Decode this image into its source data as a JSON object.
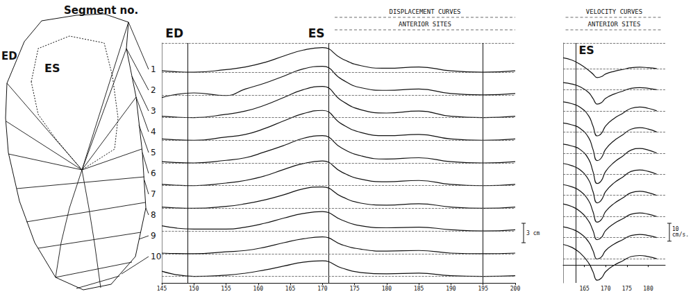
{
  "diagram": {
    "title": "Segment no.",
    "labels": [
      "ED",
      "ES"
    ],
    "segments": [
      "1",
      "2",
      "3",
      "4",
      "5",
      "6",
      "7",
      "8",
      "9",
      "10"
    ]
  },
  "chart_data": [
    {
      "type": "line",
      "title": "DISPLACEMENT CURVES",
      "subtitle": "ANTERIOR SITES",
      "color": "#111111",
      "grid": false,
      "tick_labels": "x",
      "x": [
        145,
        150,
        155,
        158,
        161,
        164,
        167,
        170,
        173,
        176,
        180,
        185,
        190,
        195,
        200
      ],
      "xlim": [
        145,
        200
      ],
      "xticks": [
        145,
        150,
        155,
        160,
        165,
        170,
        175,
        180,
        185,
        190,
        195,
        200
      ],
      "ylim": [
        0,
        37
      ],
      "yticks": [],
      "vlines": [
        149,
        171,
        195
      ],
      "annotations": [
        {
          "text": "ED",
          "x": 149
        },
        {
          "text": "ES",
          "x": 171
        }
      ],
      "scale_bar": {
        "value": 3,
        "label": "3 cm"
      },
      "series": [
        {
          "baseline": 32.5,
          "values": [
            32.7,
            32.5,
            32.9,
            33.3,
            34.0,
            35.0,
            35.9,
            36.3,
            34.6,
            33.5,
            33.1,
            33.3,
            32.7,
            32.5,
            32.7
          ]
        },
        {
          "baseline": 29,
          "values": [
            28.6,
            29.3,
            28.9,
            29.9,
            30.8,
            31.9,
            33.0,
            33.4,
            31.4,
            30.1,
            29.7,
            29.9,
            29.2,
            29.0,
            29.2
          ]
        },
        {
          "baseline": 25.5,
          "values": [
            25.7,
            25.5,
            26.0,
            26.5,
            27.4,
            28.6,
            29.8,
            30.3,
            28.1,
            26.7,
            26.2,
            26.5,
            25.7,
            25.5,
            25.7
          ]
        },
        {
          "baseline": 22,
          "values": [
            22.2,
            22.0,
            22.5,
            22.9,
            23.8,
            25.0,
            26.1,
            26.6,
            24.5,
            23.2,
            22.7,
            22.9,
            22.2,
            22.0,
            22.2
          ]
        },
        {
          "baseline": 18.5,
          "values": [
            18.7,
            18.5,
            18.9,
            19.3,
            20.2,
            21.2,
            22.3,
            22.7,
            20.8,
            19.6,
            19.1,
            19.3,
            18.7,
            18.5,
            18.7
          ]
        },
        {
          "baseline": 15,
          "values": [
            15.2,
            15.0,
            15.4,
            15.8,
            16.5,
            17.5,
            18.4,
            18.8,
            17.1,
            16.0,
            15.6,
            15.8,
            15.2,
            15.0,
            15.2
          ]
        },
        {
          "baseline": 11.5,
          "values": [
            11.7,
            11.5,
            11.8,
            12.2,
            12.8,
            13.6,
            14.5,
            14.8,
            13.3,
            12.3,
            12.0,
            12.2,
            11.7,
            11.5,
            11.7
          ]
        },
        {
          "baseline": 8,
          "values": [
            8.8,
            8.3,
            8.3,
            8.6,
            9.2,
            10.0,
            10.7,
            11.0,
            9.7,
            8.8,
            8.5,
            8.6,
            8.2,
            8.0,
            8.2
          ]
        },
        {
          "baseline": 4.5,
          "values": [
            4.6,
            4.5,
            4.8,
            5.0,
            5.5,
            6.2,
            6.8,
            7.1,
            5.9,
            5.2,
            4.9,
            5.0,
            4.6,
            4.5,
            4.6
          ]
        },
        {
          "baseline": 1,
          "values": [
            1.8,
            1.0,
            1.2,
            1.5,
            2.0,
            2.6,
            3.2,
            3.4,
            2.3,
            1.6,
            1.4,
            1.5,
            1.1,
            1.0,
            1.1
          ]
        }
      ]
    },
    {
      "type": "line",
      "title": "VELOCITY CURVES",
      "subtitle": "ANTERIOR SITES",
      "color": "#111111",
      "grid": false,
      "tick_labels": "x",
      "x": [
        160,
        162,
        164,
        166,
        167,
        168,
        169,
        170,
        172,
        174,
        176,
        178,
        180,
        182
      ],
      "xlim": [
        160,
        184
      ],
      "xticks": [
        165,
        170,
        175,
        180
      ],
      "ylim": [
        -10,
        124
      ],
      "yticks": [],
      "vlines": [
        163
      ],
      "annotations": [
        {
          "text": "ES",
          "x": 163
        }
      ],
      "scale_bar": {
        "value": 10,
        "label": "10 cm/s."
      },
      "series": [
        {
          "baseline": 109.7,
          "values": [
            115.7,
            114.5,
            112.1,
            108.7,
            106.7,
            104.7,
            105.2,
            106.7,
            108.2,
            109.2,
            110.2,
            110.5,
            110.2,
            109.7
          ]
        },
        {
          "baseline": 97.9,
          "values": [
            101.9,
            101.1,
            99.5,
            96.3,
            93.1,
            89.9,
            90.7,
            93.1,
            95.5,
            97.1,
            98.7,
            99.1,
            98.7,
            97.9
          ]
        },
        {
          "baseline": 86.1,
          "values": [
            91.1,
            90.1,
            88.1,
            83.3,
            77.7,
            72.1,
            73.5,
            77.7,
            81.9,
            84.7,
            87.5,
            88.2,
            87.5,
            86.1
          ]
        },
        {
          "baseline": 74.3,
          "values": [
            79.3,
            78.3,
            76.3,
            71.1,
            64.7,
            58.3,
            59.9,
            64.7,
            69.5,
            72.7,
            75.9,
            76.7,
            75.9,
            74.3
          ]
        },
        {
          "baseline": 62.5,
          "values": [
            67.5,
            66.5,
            64.5,
            59.1,
            52.3,
            45.5,
            47.2,
            52.3,
            57.4,
            60.8,
            64.2,
            65.1,
            64.2,
            62.5
          ]
        },
        {
          "baseline": 50.7,
          "values": [
            56.7,
            55.5,
            53.1,
            47.5,
            41.1,
            34.7,
            36.3,
            41.1,
            45.9,
            49.1,
            52.3,
            53.1,
            52.3,
            50.7
          ]
        },
        {
          "baseline": 38.9,
          "values": [
            44.9,
            43.7,
            41.3,
            35.9,
            29.9,
            23.9,
            25.4,
            29.9,
            34.4,
            37.4,
            40.4,
            41.2,
            40.4,
            38.9
          ]
        },
        {
          "baseline": 27.1,
          "values": [
            34.1,
            32.7,
            29.9,
            24.5,
            19.3,
            14.1,
            15.4,
            19.3,
            23.2,
            25.8,
            28.4,
            29.1,
            28.4,
            27.1
          ]
        },
        {
          "baseline": 15.3,
          "values": [
            21.3,
            20.1,
            17.7,
            12.9,
            8.1,
            3.3,
            4.5,
            8.1,
            11.7,
            14.1,
            16.5,
            17.1,
            16.5,
            15.3
          ]
        },
        {
          "baseline": 3.5,
          "values": [
            11.5,
            9.9,
            6.7,
            1.1,
            -3.7,
            -8.5,
            -7.3,
            -3.7,
            -0.1,
            2.3,
            4.7,
            5.3,
            4.7,
            3.5
          ]
        }
      ]
    }
  ]
}
